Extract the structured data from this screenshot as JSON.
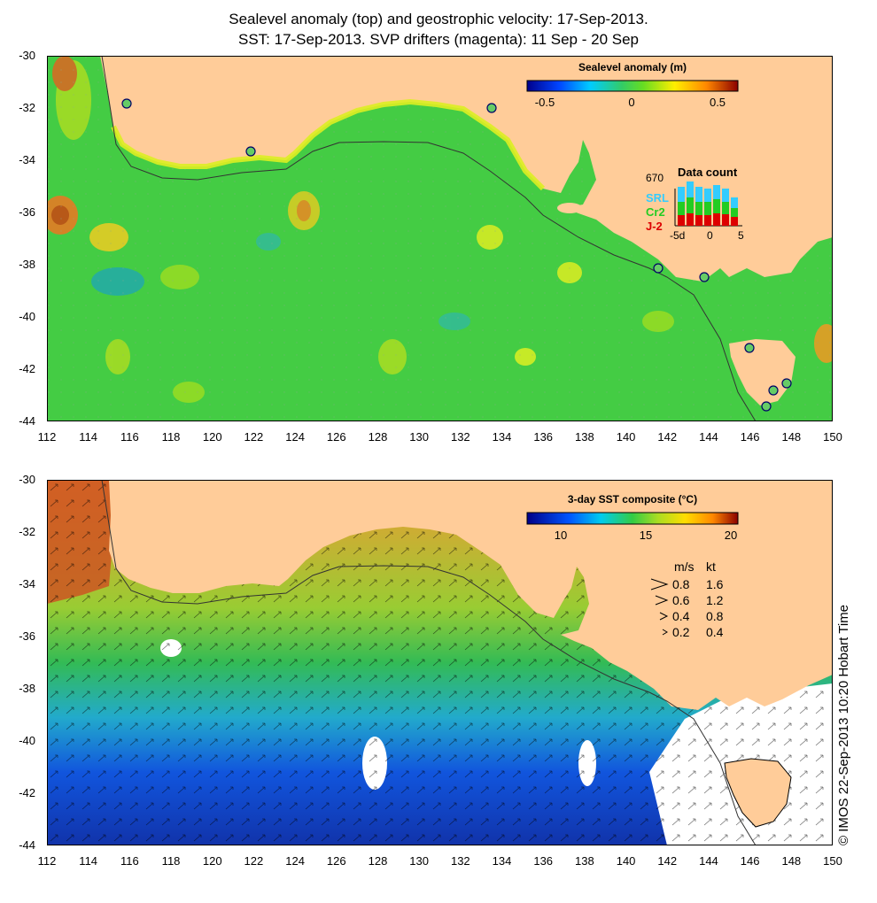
{
  "title_line1": "Sealevel anomaly (top) and geostrophic velocity: 17-Sep-2013.",
  "title_line2": "SST: 17-Sep-2013. SVP drifters (magenta): 11 Sep - 20 Sep",
  "lat_labels": [
    "-30",
    "-32",
    "-34",
    "-36",
    "-38",
    "-40",
    "-42",
    "-44"
  ],
  "lon_labels": [
    "112",
    "114",
    "116",
    "118",
    "120",
    "122",
    "124",
    "126",
    "128",
    "130",
    "132",
    "134",
    "136",
    "138",
    "140",
    "142",
    "144",
    "146",
    "148",
    "150"
  ],
  "top_panel": {
    "colorbar_title": "Sealevel anomaly (m)",
    "colorbar_ticks": [
      "-0.5",
      "0",
      "0.5"
    ],
    "data_count": {
      "title": "Data count",
      "max_label": "670",
      "axis_labels": [
        "-5d",
        "0",
        "5"
      ],
      "satellites": [
        {
          "name": "SRL",
          "color": "#33ccff"
        },
        {
          "name": "Cr2",
          "color": "#22cc22"
        },
        {
          "name": "J-2",
          "color": "#dd0000"
        }
      ]
    }
  },
  "bottom_panel": {
    "colorbar_title": "3-day SST composite (°C)",
    "colorbar_ticks": [
      "10",
      "15",
      "20"
    ],
    "velocity_legend": {
      "header_ms": "m/s",
      "header_kt": "kt",
      "rows": [
        {
          "ms": "0.8",
          "kt": "1.6"
        },
        {
          "ms": "0.6",
          "kt": "1.2"
        },
        {
          "ms": "0.4",
          "kt": "0.8"
        },
        {
          "ms": "0.2",
          "kt": "0.4"
        }
      ]
    }
  },
  "copyright": "© IMOS 22-Sep-2013 10:20 Hobart Time",
  "colors": {
    "land": "#ffcc99",
    "ocean_top": "#44cc44",
    "sst_warm": "#ee9933",
    "sst_mid": "#33cc44",
    "sst_cool": "#2288ee",
    "sst_cold": "#1133bb"
  }
}
